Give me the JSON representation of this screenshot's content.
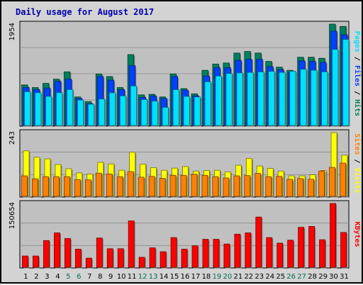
{
  "chart_data": {
    "title": "Daily usage for August 2017",
    "type": "bar",
    "days": [
      "1",
      "2",
      "3",
      "4",
      "5",
      "6",
      "7",
      "8",
      "9",
      "10",
      "11",
      "12",
      "13",
      "14",
      "15",
      "16",
      "17",
      "18",
      "19",
      "20",
      "21",
      "22",
      "23",
      "24",
      "25",
      "26",
      "27",
      "28",
      "29",
      "30",
      "31"
    ],
    "weekend_days": [
      "5",
      "6",
      "12",
      "13",
      "19",
      "20",
      "26",
      "27"
    ],
    "colors": {
      "background": "#d3d3d3",
      "plot": "#c0c0c0",
      "title": "#0000b0",
      "tick_weekday": "#000000",
      "tick_weekend": "#006f55",
      "hits": "#00805c",
      "files": "#0040ff",
      "pages": "#00e0ff",
      "visits": "#ffff00",
      "sites": "#ff8000",
      "kbytes": "#ff0000"
    },
    "panels": [
      {
        "name": "hits-files-pages",
        "ymax": 1954,
        "ymax_label": "1954",
        "legend": [
          {
            "text": "Pages",
            "color": "#00e0ff"
          },
          {
            "text": " / ",
            "color": "#000000"
          },
          {
            "text": "Files",
            "color": "#0040ff"
          },
          {
            "text": " / ",
            "color": "#000000"
          },
          {
            "text": "Hits",
            "color": "#00805c"
          }
        ],
        "series": [
          {
            "name": "Hits",
            "color": "#00805c",
            "values": [
              790,
              740,
              820,
              900,
              1040,
              560,
              470,
              1000,
              950,
              740,
              1370,
              600,
              610,
              560,
              1000,
              720,
              620,
              1070,
              1190,
              1210,
              1400,
              1430,
              1400,
              1240,
              1130,
              1070,
              1320,
              1320,
              1300,
              1954,
              1910
            ]
          },
          {
            "name": "Files",
            "color": "#0040ff",
            "values": [
              740,
              700,
              730,
              860,
              900,
              530,
              430,
              950,
              880,
              700,
              1160,
              550,
              580,
              530,
              950,
              690,
              580,
              960,
              1120,
              1120,
              1260,
              1280,
              1280,
              1140,
              1080,
              1030,
              1250,
              1240,
              1220,
              1820,
              1750
            ]
          },
          {
            "name": "Pages",
            "color": "#00e0ff",
            "values": [
              660,
              640,
              570,
              640,
              700,
              500,
              420,
              520,
              640,
              580,
              770,
              510,
              480,
              360,
              700,
              570,
              560,
              850,
              960,
              1010,
              1020,
              1030,
              1040,
              1050,
              1030,
              1050,
              1090,
              1070,
              1040,
              1470,
              1660
            ]
          }
        ]
      },
      {
        "name": "visits-sites",
        "ymax": 243,
        "ymax_label": "243",
        "legend": [
          {
            "text": "Sites",
            "color": "#ff8000"
          },
          {
            "text": " / ",
            "color": "#000000"
          },
          {
            "text": "Visits",
            "color": "#ffff00"
          }
        ],
        "series": [
          {
            "name": "Visits",
            "color": "#ffff00",
            "values": [
              174,
              150,
              144,
              123,
              107,
              91,
              87,
              131,
              125,
              101,
              169,
              124,
              111,
              101,
              109,
              115,
              98,
              100,
              101,
              95,
              120,
              146,
              117,
              108,
              98,
              80,
              80,
              84,
              100,
              243,
              158
            ]
          },
          {
            "name": "Sites",
            "color": "#ff8000",
            "values": [
              80,
              69,
              77,
              77,
              77,
              66,
              65,
              90,
              87,
              77,
              96,
              75,
              78,
              71,
              82,
              82,
              86,
              82,
              77,
              72,
              80,
              81,
              89,
              77,
              78,
              67,
              70,
              67,
              98,
              112,
              128
            ]
          }
        ]
      },
      {
        "name": "kbytes",
        "ymax": 150654,
        "ymax_label": "150654",
        "legend": [
          {
            "text": "KBytes",
            "color": "#ff0000"
          }
        ],
        "series": [
          {
            "name": "KBytes",
            "color": "#ff0000",
            "values": [
              28000,
              28000,
              64000,
              82000,
              69000,
              44000,
              23000,
              70000,
              45000,
              45000,
              110000,
              25000,
              47000,
              38000,
              71000,
              44000,
              52000,
              67000,
              67000,
              56000,
              79000,
              82000,
              119000,
              71000,
              58000,
              65000,
              95000,
              97000,
              66000,
              150654,
              83000
            ]
          }
        ]
      }
    ]
  }
}
